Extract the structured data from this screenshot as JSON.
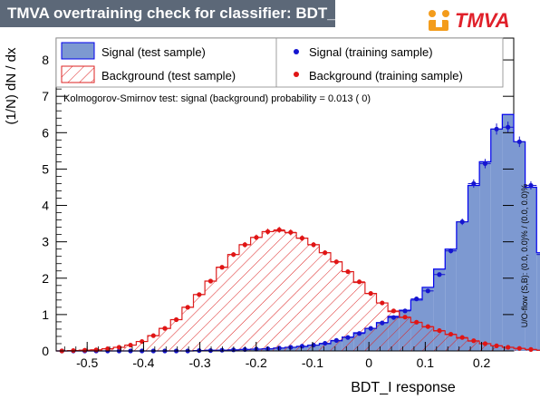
{
  "header": {
    "title": "TMVA overtraining check for classifier: BDT_I",
    "logo_text": "TMVA"
  },
  "side_note": "U/O-flow (S,B): (0.0, 0.0)% / (0.0, 0.0)%",
  "chart_data": {
    "type": "histogram",
    "xlabel": "BDT_I response",
    "ylabel": "(1/N) dN / dx",
    "xlim": [
      -0.555,
      0.257
    ],
    "ylim": [
      0,
      8.6
    ],
    "xticks": [
      -0.5,
      -0.4,
      -0.3,
      -0.2,
      -0.1,
      0,
      0.1,
      0.2
    ],
    "xtick_labels": [
      "-0.5",
      "-0.4",
      "-0.3",
      "-0.2",
      "-0.1",
      "0",
      "0.1",
      "0.2"
    ],
    "yticks": [
      0,
      1,
      2,
      3,
      4,
      5,
      6,
      7,
      8
    ],
    "ytick_labels": [
      "0",
      "1",
      "2",
      "3",
      "4",
      "5",
      "6",
      "7",
      "8"
    ],
    "annotation": "Kolmogorov-Smirnov test: signal (background) probability = 0.013 (    0)",
    "bin_edges_start": -0.555,
    "bin_width": 0.0203,
    "series": [
      {
        "name": "Signal (test sample)",
        "style": "filled-histogram",
        "color": "#7d99d1",
        "edge_color": "#0000ee",
        "values": [
          0,
          0,
          0,
          0,
          0,
          0,
          0,
          0,
          0,
          0,
          0,
          0,
          0.01,
          0.02,
          0.02,
          0.03,
          0.04,
          0.05,
          0.06,
          0.08,
          0.1,
          0.12,
          0.16,
          0.2,
          0.28,
          0.38,
          0.5,
          0.62,
          0.78,
          0.95,
          1.12,
          1.4,
          1.75,
          2.25,
          2.8,
          3.55,
          4.55,
          5.2,
          6.1,
          6.5,
          5.75,
          4.5,
          2.7,
          1.2,
          0.3
        ]
      },
      {
        "name": "Background (test sample)",
        "style": "hatched-histogram",
        "color": "#dd2222",
        "values": [
          0,
          0.01,
          0.02,
          0.03,
          0.06,
          0.1,
          0.16,
          0.26,
          0.42,
          0.62,
          0.86,
          1.2,
          1.55,
          1.92,
          2.3,
          2.65,
          2.92,
          3.12,
          3.28,
          3.3,
          3.25,
          3.1,
          2.92,
          2.7,
          2.45,
          2.18,
          1.88,
          1.58,
          1.32,
          1.08,
          0.92,
          0.78,
          0.66,
          0.55,
          0.45,
          0.35,
          0.27,
          0.2,
          0.14,
          0.1,
          0.07,
          0.04,
          0.02,
          0.01,
          0
        ]
      },
      {
        "name": "Signal (training sample)",
        "style": "points",
        "color": "#1515d0",
        "values": [
          0,
          0,
          0,
          0,
          0,
          0,
          0,
          0,
          0,
          0,
          0,
          0,
          0.01,
          0.01,
          0.02,
          0.03,
          0.04,
          0.05,
          0.06,
          0.08,
          0.1,
          0.13,
          0.16,
          0.21,
          0.29,
          0.37,
          0.48,
          0.62,
          0.77,
          0.92,
          1.1,
          1.43,
          1.65,
          2.1,
          2.75,
          3.55,
          4.6,
          5.15,
          6.1,
          6.15,
          5.75,
          4.55,
          2.65,
          1.2,
          0.27
        ]
      },
      {
        "name": "Background (training sample)",
        "style": "points",
        "color": "#e01515",
        "values": [
          0,
          0.01,
          0.02,
          0.03,
          0.06,
          0.1,
          0.16,
          0.26,
          0.42,
          0.62,
          0.86,
          1.2,
          1.55,
          1.92,
          2.3,
          2.65,
          2.92,
          3.12,
          3.28,
          3.33,
          3.26,
          3.1,
          2.92,
          2.7,
          2.45,
          2.18,
          1.9,
          1.58,
          1.32,
          1.1,
          0.93,
          0.79,
          0.67,
          0.56,
          0.46,
          0.37,
          0.28,
          0.2,
          0.14,
          0.1,
          0.07,
          0.04,
          0.02,
          0.01,
          0
        ]
      }
    ],
    "legend": "top"
  }
}
